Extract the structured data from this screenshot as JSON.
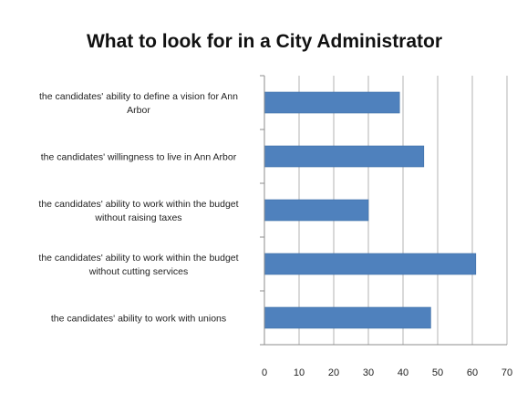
{
  "chart_data": {
    "type": "bar",
    "orientation": "horizontal",
    "title": "What to look for in a City Administrator",
    "xlabel": "",
    "ylabel": "",
    "categories": [
      [
        "the candidates' ability to define a vision for Ann",
        "Arbor"
      ],
      [
        "the candidates' willingness to live in Ann Arbor"
      ],
      [
        "the candidates' ability to work within the budget",
        "without raising taxes"
      ],
      [
        "the candidates' ability to work within the budget",
        "without cutting services"
      ],
      [
        "the candidates' ability to work with unions"
      ]
    ],
    "values": [
      39,
      46,
      30,
      61,
      48
    ],
    "xlim": [
      0,
      70
    ],
    "ticks": [
      0,
      10,
      20,
      30,
      40,
      50,
      60,
      70
    ],
    "tick_labels": [
      "0",
      "10",
      "20",
      "30",
      "40",
      "50",
      "60",
      "70"
    ],
    "grid": true,
    "legend": "none",
    "colors": {
      "bar": "#4f81bd",
      "bar_stroke": "#3d6ea6",
      "grid": "#a0a0a0",
      "axis": "#8c8c8c"
    }
  }
}
